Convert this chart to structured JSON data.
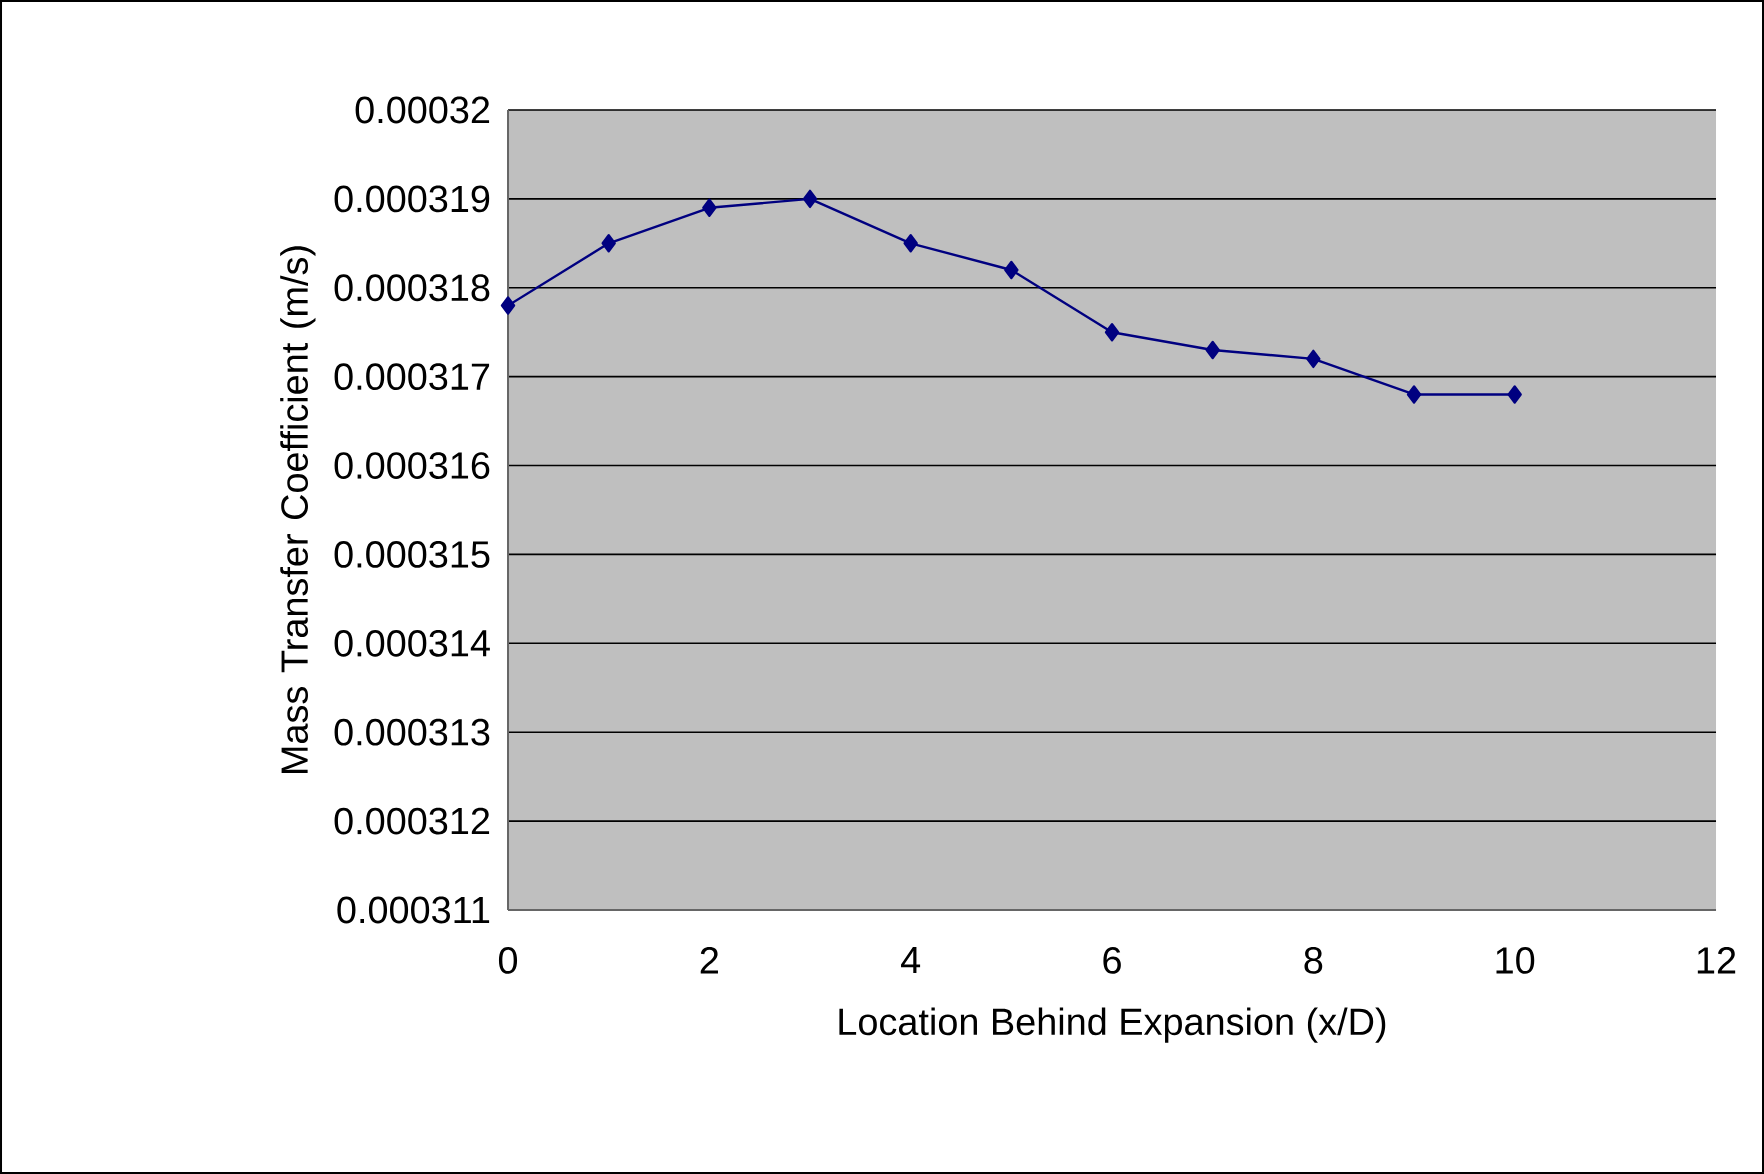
{
  "chart_data": {
    "type": "line",
    "xlabel": "Location Behind Expansion (x/D)",
    "ylabel": "Mass Transfer Coefficient (m/s)",
    "x": [
      0,
      1,
      2,
      3,
      4,
      5,
      6,
      7,
      8,
      9,
      10
    ],
    "series": [
      {
        "color": "#000080",
        "values": [
          0.0003178,
          0.0003185,
          0.0003189,
          0.000319,
          0.0003185,
          0.0003182,
          0.0003175,
          0.0003173,
          0.0003172,
          0.0003168,
          0.0003168
        ]
      }
    ],
    "xlim": [
      0,
      12
    ],
    "xticks": [
      0,
      2,
      4,
      6,
      8,
      10,
      12
    ],
    "ylim": [
      0.000311,
      0.00032
    ],
    "yticks": [
      0.000311,
      0.000312,
      0.000313,
      0.000314,
      0.000315,
      0.000316,
      0.000317,
      0.000318,
      0.000319,
      0.00032
    ],
    "grid": "y",
    "marker": "diamond",
    "line_style": "solid"
  }
}
